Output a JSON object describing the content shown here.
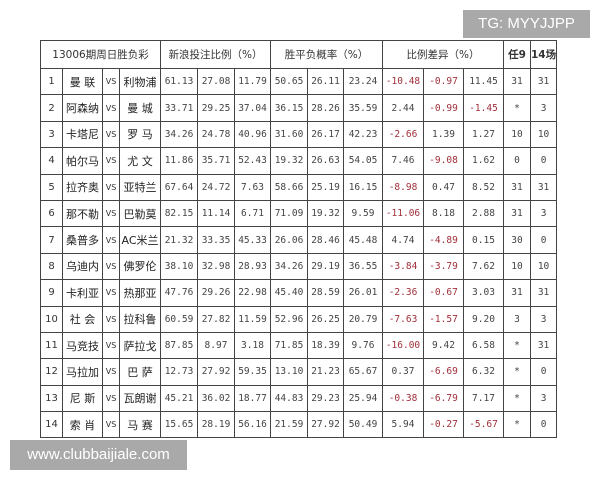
{
  "header": {
    "title": "13006期周日胜负彩",
    "sina_ratio": "新浪投注比例（%）",
    "probability": "胜平负概率（%）",
    "diff": "比例差异（%）",
    "ren9": "任9",
    "c14": "14场"
  },
  "colors": {
    "negative": "#a0303a",
    "border": "#444444"
  },
  "rows": [
    {
      "n": "1",
      "home": "曼 联",
      "vs": "VS",
      "away": "利物浦",
      "s": [
        "61.13",
        "27.08",
        "11.79"
      ],
      "p": [
        "50.65",
        "26.11",
        "23.24"
      ],
      "d": [
        "-10.48",
        "-0.97",
        "11.45"
      ],
      "r9": "31",
      "r14": "31"
    },
    {
      "n": "2",
      "home": "阿森纳",
      "vs": "VS",
      "away": "曼 城",
      "s": [
        "33.71",
        "29.25",
        "37.04"
      ],
      "p": [
        "36.15",
        "28.26",
        "35.59"
      ],
      "d": [
        "2.44",
        "-0.99",
        "-1.45"
      ],
      "r9": "*",
      "r14": "3"
    },
    {
      "n": "3",
      "home": "卡塔尼",
      "vs": "VS",
      "away": "罗 马",
      "s": [
        "34.26",
        "24.78",
        "40.96"
      ],
      "p": [
        "31.60",
        "26.17",
        "42.23"
      ],
      "d": [
        "-2.66",
        "1.39",
        "1.27"
      ],
      "r9": "10",
      "r14": "10"
    },
    {
      "n": "4",
      "home": "帕尔马",
      "vs": "VS",
      "away": "尤 文",
      "s": [
        "11.86",
        "35.71",
        "52.43"
      ],
      "p": [
        "19.32",
        "26.63",
        "54.05"
      ],
      "d": [
        "7.46",
        "-9.08",
        "1.62"
      ],
      "r9": "0",
      "r14": "0"
    },
    {
      "n": "5",
      "home": "拉齐奥",
      "vs": "VS",
      "away": "亚特兰",
      "s": [
        "67.64",
        "24.72",
        "7.63"
      ],
      "p": [
        "58.66",
        "25.19",
        "16.15"
      ],
      "d": [
        "-8.98",
        "0.47",
        "8.52"
      ],
      "r9": "31",
      "r14": "31"
    },
    {
      "n": "6",
      "home": "那不勒",
      "vs": "VS",
      "away": "巴勒莫",
      "s": [
        "82.15",
        "11.14",
        "6.71"
      ],
      "p": [
        "71.09",
        "19.32",
        "9.59"
      ],
      "d": [
        "-11.06",
        "8.18",
        "2.88"
      ],
      "r9": "31",
      "r14": "3"
    },
    {
      "n": "7",
      "home": "桑普多",
      "vs": "VS",
      "away": "AC米兰",
      "s": [
        "21.32",
        "33.35",
        "45.33"
      ],
      "p": [
        "26.06",
        "28.46",
        "45.48"
      ],
      "d": [
        "4.74",
        "-4.89",
        "0.15"
      ],
      "r9": "30",
      "r14": "0"
    },
    {
      "n": "8",
      "home": "乌迪内",
      "vs": "VS",
      "away": "佛罗伦",
      "s": [
        "38.10",
        "32.98",
        "28.93"
      ],
      "p": [
        "34.26",
        "29.19",
        "36.55"
      ],
      "d": [
        "-3.84",
        "-3.79",
        "7.62"
      ],
      "r9": "10",
      "r14": "10"
    },
    {
      "n": "9",
      "home": "卡利亚",
      "vs": "VS",
      "away": "热那亚",
      "s": [
        "47.76",
        "29.26",
        "22.98"
      ],
      "p": [
        "45.40",
        "28.59",
        "26.01"
      ],
      "d": [
        "-2.36",
        "-0.67",
        "3.03"
      ],
      "r9": "31",
      "r14": "31"
    },
    {
      "n": "10",
      "home": "社 会",
      "vs": "VS",
      "away": "拉科鲁",
      "s": [
        "60.59",
        "27.82",
        "11.59"
      ],
      "p": [
        "52.96",
        "26.25",
        "20.79"
      ],
      "d": [
        "-7.63",
        "-1.57",
        "9.20"
      ],
      "r9": "3",
      "r14": "3"
    },
    {
      "n": "11",
      "home": "马竞技",
      "vs": "VS",
      "away": "萨拉戈",
      "s": [
        "87.85",
        "8.97",
        "3.18"
      ],
      "p": [
        "71.85",
        "18.39",
        "9.76"
      ],
      "d": [
        "-16.00",
        "9.42",
        "6.58"
      ],
      "r9": "*",
      "r14": "31"
    },
    {
      "n": "12",
      "home": "马拉加",
      "vs": "VS",
      "away": "巴 萨",
      "s": [
        "12.73",
        "27.92",
        "59.35"
      ],
      "p": [
        "13.10",
        "21.23",
        "65.67"
      ],
      "d": [
        "0.37",
        "-6.69",
        "6.32"
      ],
      "r9": "*",
      "r14": "0"
    },
    {
      "n": "13",
      "home": "尼 斯",
      "vs": "VS",
      "away": "瓦朗谢",
      "s": [
        "45.21",
        "36.02",
        "18.77"
      ],
      "p": [
        "44.83",
        "29.23",
        "25.94"
      ],
      "d": [
        "-0.38",
        "-6.79",
        "7.17"
      ],
      "r9": "*",
      "r14": "3"
    },
    {
      "n": "14",
      "home": "索 肖",
      "vs": "VS",
      "away": "马 赛",
      "s": [
        "15.65",
        "28.19",
        "56.16"
      ],
      "p": [
        "21.59",
        "27.92",
        "50.49"
      ],
      "d": [
        "5.94",
        "-0.27",
        "-5.67"
      ],
      "r9": "*",
      "r14": "0"
    }
  ],
  "watermarks": {
    "top": "TG: MYYJJPP",
    "bottom": "www.clubbaijiale.com"
  }
}
